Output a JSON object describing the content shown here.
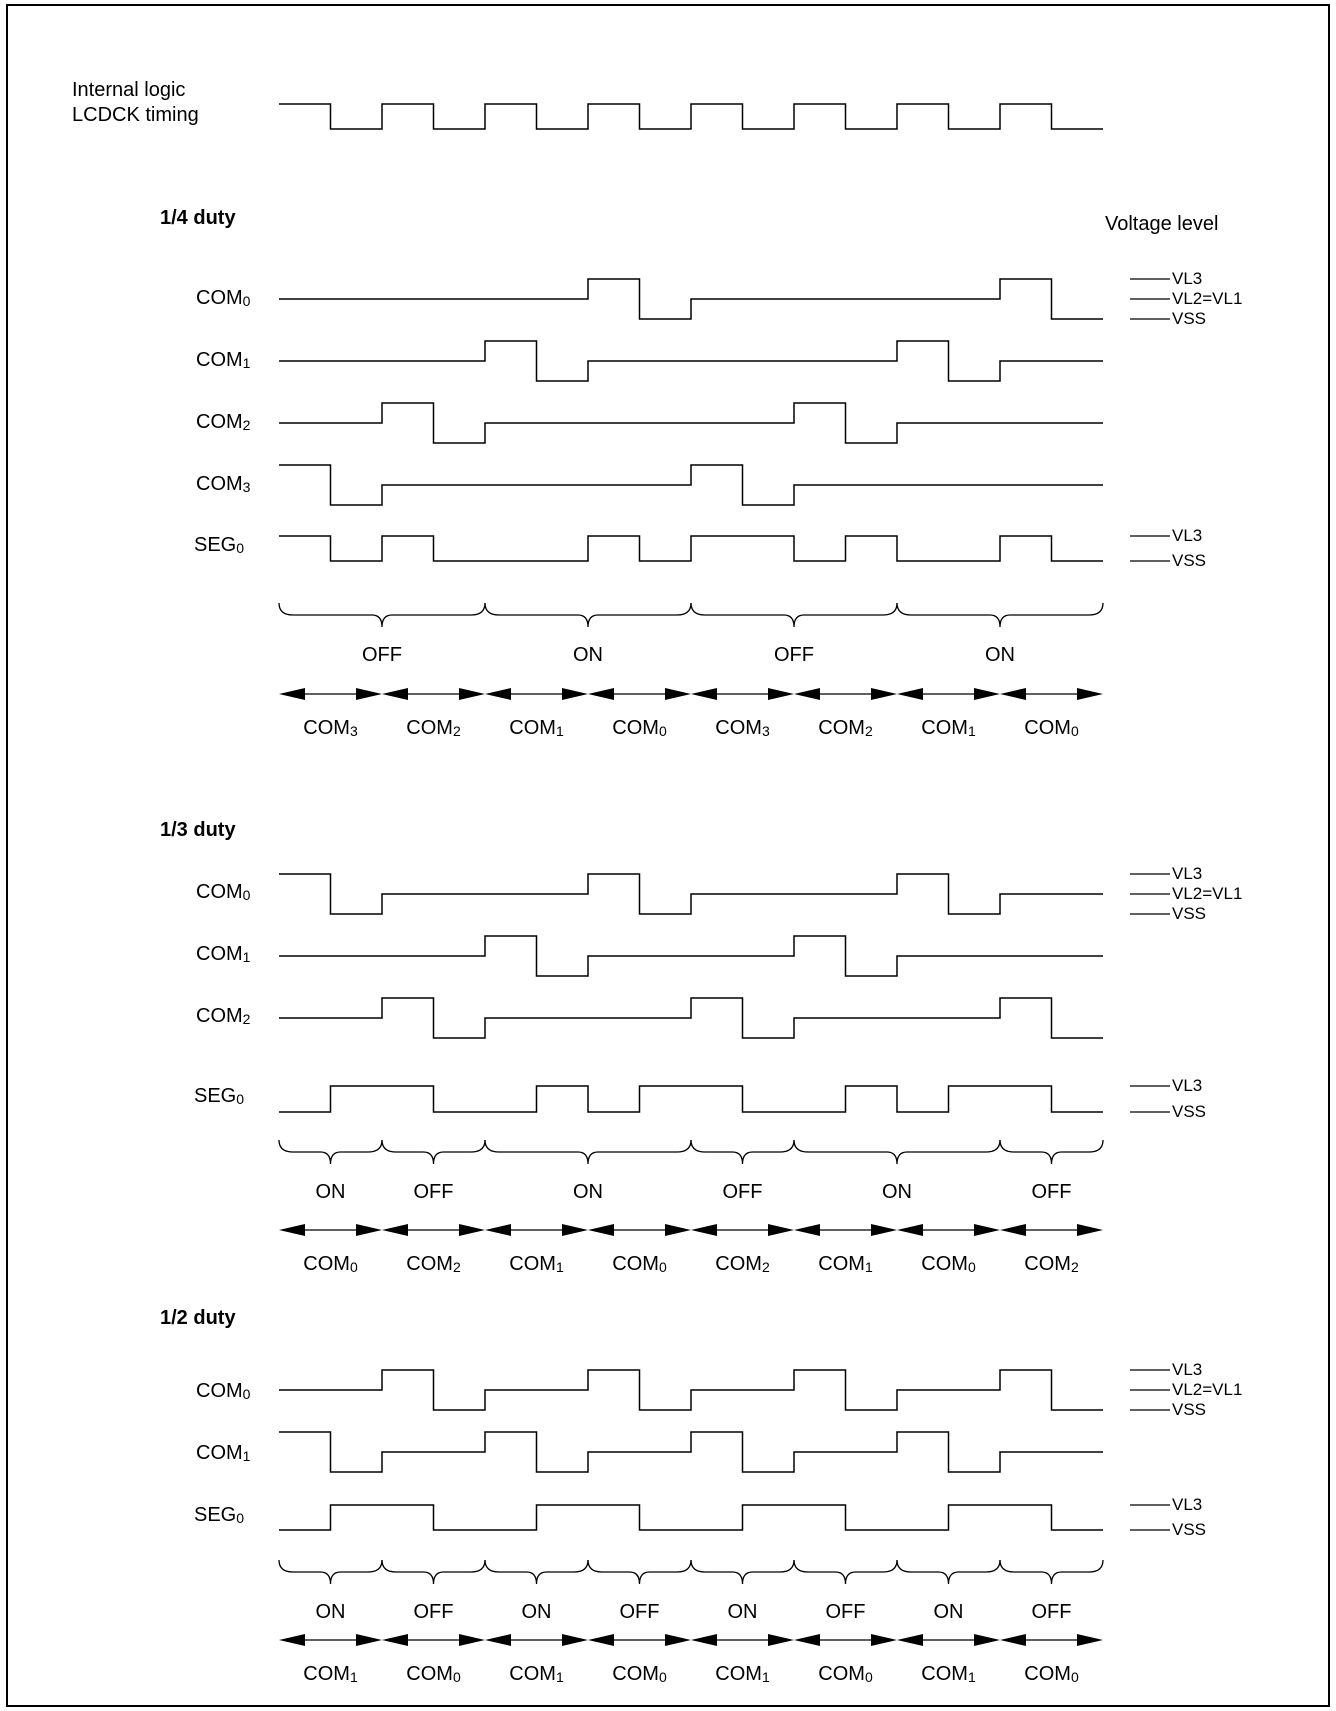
{
  "clock": {
    "line1": "Internal logic",
    "line2": "LCDCK timing"
  },
  "voltage_header": "Voltage level",
  "levels": {
    "vl3": "VL3",
    "vl2vl1": "VL2=VL1",
    "vss": "VSS"
  },
  "sections": [
    {
      "title": "1/4 duty",
      "signals": [
        {
          "name": "COM",
          "sub": "0"
        },
        {
          "name": "COM",
          "sub": "1"
        },
        {
          "name": "COM",
          "sub": "2"
        },
        {
          "name": "COM",
          "sub": "3"
        },
        {
          "name": "SEG",
          "sub": "0"
        }
      ],
      "states": [
        "OFF",
        "ON",
        "OFF",
        "ON"
      ],
      "frames": [
        {
          "name": "COM",
          "sub": "3"
        },
        {
          "name": "COM",
          "sub": "2"
        },
        {
          "name": "COM",
          "sub": "1"
        },
        {
          "name": "COM",
          "sub": "0"
        },
        {
          "name": "COM",
          "sub": "3"
        },
        {
          "name": "COM",
          "sub": "2"
        },
        {
          "name": "COM",
          "sub": "1"
        },
        {
          "name": "COM",
          "sub": "0"
        }
      ]
    },
    {
      "title": "1/3 duty",
      "signals": [
        {
          "name": "COM",
          "sub": "0"
        },
        {
          "name": "COM",
          "sub": "1"
        },
        {
          "name": "COM",
          "sub": "2"
        },
        {
          "name": "SEG",
          "sub": "0"
        }
      ],
      "states": [
        "ON",
        "OFF",
        "ON",
        "OFF",
        "ON",
        "OFF"
      ],
      "frames": [
        {
          "name": "COM",
          "sub": "0"
        },
        {
          "name": "COM",
          "sub": "2"
        },
        {
          "name": "COM",
          "sub": "1"
        },
        {
          "name": "COM",
          "sub": "0"
        },
        {
          "name": "COM",
          "sub": "2"
        },
        {
          "name": "COM",
          "sub": "1"
        },
        {
          "name": "COM",
          "sub": "0"
        },
        {
          "name": "COM",
          "sub": "2"
        }
      ]
    },
    {
      "title": "1/2 duty",
      "signals": [
        {
          "name": "COM",
          "sub": "0"
        },
        {
          "name": "COM",
          "sub": "1"
        },
        {
          "name": "SEG",
          "sub": "0"
        }
      ],
      "states": [
        "ON",
        "OFF",
        "ON",
        "OFF",
        "ON",
        "OFF",
        "ON",
        "OFF"
      ],
      "frames": [
        {
          "name": "COM",
          "sub": "1"
        },
        {
          "name": "COM",
          "sub": "0"
        },
        {
          "name": "COM",
          "sub": "1"
        },
        {
          "name": "COM",
          "sub": "0"
        },
        {
          "name": "COM",
          "sub": "1"
        },
        {
          "name": "COM",
          "sub": "0"
        },
        {
          "name": "COM",
          "sub": "1"
        },
        {
          "name": "COM",
          "sub": "0"
        }
      ]
    }
  ]
}
